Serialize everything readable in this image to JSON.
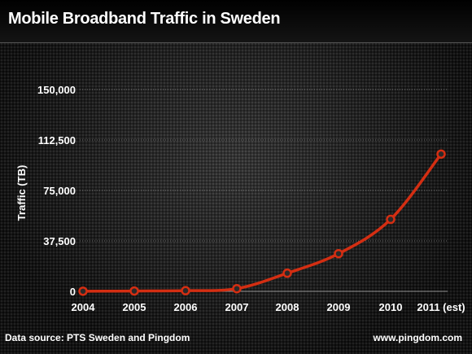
{
  "title": "Mobile Broadband Traffic in Sweden",
  "footer": {
    "source": "Data source: PTS Sweden and Pingdom",
    "website": "www.pingdom.com"
  },
  "chart_data": {
    "type": "line",
    "title": "Mobile Broadband Traffic in Sweden",
    "xlabel": "",
    "ylabel": "Traffic (TB)",
    "categories": [
      "2004",
      "2005",
      "2006",
      "2007",
      "2008",
      "2009",
      "2010",
      "2011 (est)"
    ],
    "series": [
      {
        "values": [
          100,
          250,
          500,
          2000,
          13500,
          28000,
          53500,
          102000
        ]
      }
    ],
    "ylim": [
      0,
      150000
    ],
    "yticks": [
      0,
      37500,
      75000,
      112500,
      150000
    ],
    "ytick_labels": [
      "0",
      "37,500",
      "75,000",
      "112,500",
      "150,000"
    ],
    "grid": true,
    "line_color": "#d42e12",
    "marker_fill": "#2a2a2a"
  }
}
